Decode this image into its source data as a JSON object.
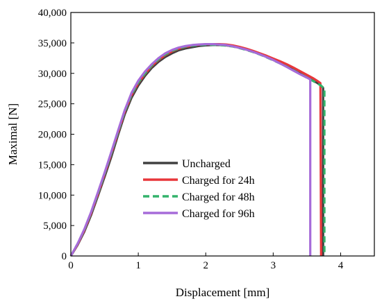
{
  "chart_data": {
    "type": "line",
    "xlabel": "Displacement [mm]",
    "ylabel": "Maximal [N]",
    "xlim": [
      0,
      4.5
    ],
    "ylim": [
      0,
      40000
    ],
    "x_ticks": [
      "0",
      "1",
      "2",
      "3",
      "4"
    ],
    "y_ticks": [
      "0",
      "5,000",
      "10,000",
      "15,000",
      "20,000",
      "25,000",
      "30,000",
      "35,000",
      "40,000"
    ],
    "x_tick_values": [
      0,
      1,
      2,
      3,
      4
    ],
    "y_tick_values": [
      0,
      5000,
      10000,
      15000,
      20000,
      25000,
      30000,
      35000,
      40000
    ],
    "grid": false,
    "legend_position": "center-right",
    "series": [
      {
        "name": "Uncharged",
        "color": "#404040",
        "dash": "solid",
        "x": [
          0,
          0.1,
          0.2,
          0.3,
          0.4,
          0.5,
          0.6,
          0.7,
          0.8,
          0.9,
          1.0,
          1.1,
          1.2,
          1.3,
          1.4,
          1.5,
          1.6,
          1.7,
          1.8,
          1.9,
          2.0,
          2.1,
          2.2,
          2.3,
          2.4,
          2.5,
          2.6,
          2.7,
          2.8,
          2.9,
          3.0,
          3.1,
          3.2,
          3.3,
          3.4,
          3.5,
          3.6,
          3.65,
          3.7,
          3.74,
          3.74
        ],
        "y": [
          0,
          1800,
          4000,
          6700,
          9800,
          13000,
          16300,
          19900,
          23300,
          26000,
          28000,
          29600,
          30900,
          31900,
          32700,
          33300,
          33800,
          34100,
          34300,
          34500,
          34600,
          34650,
          34650,
          34600,
          34450,
          34200,
          33900,
          33550,
          33150,
          32700,
          32200,
          31700,
          31150,
          30550,
          29950,
          29350,
          28750,
          28450,
          28100,
          27600,
          0
        ]
      },
      {
        "name": "Charged for 24h",
        "color": "#e8363a",
        "dash": "solid",
        "x": [
          0,
          0.1,
          0.2,
          0.3,
          0.4,
          0.5,
          0.6,
          0.7,
          0.8,
          0.9,
          1.0,
          1.1,
          1.2,
          1.3,
          1.4,
          1.5,
          1.6,
          1.7,
          1.8,
          1.9,
          2.0,
          2.1,
          2.2,
          2.3,
          2.4,
          2.5,
          2.6,
          2.7,
          2.8,
          2.9,
          3.0,
          3.1,
          3.2,
          3.3,
          3.4,
          3.5,
          3.6,
          3.65,
          3.7,
          3.71
        ],
        "y": [
          0,
          1900,
          4200,
          7000,
          10100,
          13400,
          16800,
          20300,
          23700,
          26400,
          28400,
          29900,
          31200,
          32200,
          33000,
          33600,
          34050,
          34350,
          34550,
          34700,
          34780,
          34800,
          34800,
          34750,
          34600,
          34350,
          34050,
          33700,
          33300,
          32900,
          32450,
          32000,
          31500,
          30950,
          30350,
          29750,
          29150,
          28800,
          28400,
          0
        ]
      },
      {
        "name": "Charged for 48h",
        "color": "#33b36b",
        "dash": "dashed",
        "x": [
          0,
          0.1,
          0.2,
          0.3,
          0.4,
          0.5,
          0.6,
          0.7,
          0.8,
          0.9,
          1.0,
          1.1,
          1.2,
          1.3,
          1.4,
          1.5,
          1.6,
          1.7,
          1.8,
          1.9,
          2.0,
          2.1,
          2.2,
          2.3,
          2.4,
          2.5,
          2.6,
          2.7,
          2.8,
          2.9,
          3.0,
          3.1,
          3.2,
          3.3,
          3.4,
          3.5,
          3.6,
          3.65,
          3.7,
          3.76,
          3.76
        ],
        "y": [
          0,
          2000,
          4300,
          7100,
          10200,
          13500,
          16900,
          20400,
          23800,
          26500,
          28500,
          30000,
          31300,
          32300,
          33100,
          33700,
          34100,
          34400,
          34550,
          34650,
          34700,
          34700,
          34650,
          34550,
          34400,
          34150,
          33850,
          33500,
          33100,
          32650,
          32150,
          31650,
          31100,
          30500,
          29900,
          29300,
          28700,
          28400,
          28050,
          27500,
          0
        ]
      },
      {
        "name": "Charged for 96h",
        "color": "#a66bd9",
        "dash": "solid",
        "x": [
          0,
          0.1,
          0.2,
          0.3,
          0.4,
          0.5,
          0.6,
          0.7,
          0.8,
          0.9,
          1.0,
          1.1,
          1.2,
          1.3,
          1.4,
          1.5,
          1.6,
          1.7,
          1.8,
          1.9,
          2.0,
          2.1,
          2.2,
          2.3,
          2.4,
          2.5,
          2.6,
          2.7,
          2.8,
          2.9,
          3.0,
          3.1,
          3.2,
          3.3,
          3.4,
          3.5,
          3.55,
          3.55
        ],
        "y": [
          0,
          2000,
          4400,
          7200,
          10400,
          13700,
          17100,
          20600,
          24000,
          26800,
          28800,
          30300,
          31500,
          32500,
          33300,
          33850,
          34250,
          34500,
          34650,
          34750,
          34800,
          34800,
          34750,
          34650,
          34450,
          34200,
          33900,
          33550,
          33150,
          32700,
          32200,
          31650,
          31050,
          30450,
          29850,
          29300,
          29000,
          0
        ]
      }
    ]
  }
}
